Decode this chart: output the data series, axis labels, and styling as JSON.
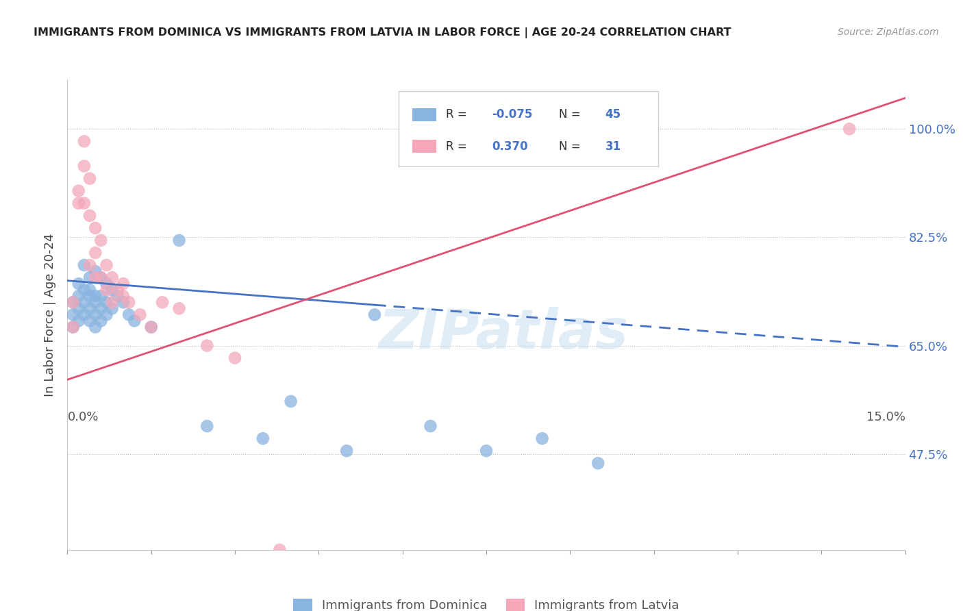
{
  "title": "IMMIGRANTS FROM DOMINICA VS IMMIGRANTS FROM LATVIA IN LABOR FORCE | AGE 20-24 CORRELATION CHART",
  "source": "Source: ZipAtlas.com",
  "ylabel": "In Labor Force | Age 20-24",
  "xlim": [
    0.0,
    0.15
  ],
  "ylim": [
    0.32,
    1.08
  ],
  "ytick_positions": [
    0.475,
    0.65,
    0.825,
    1.0
  ],
  "ytick_labels": [
    "47.5%",
    "65.0%",
    "82.5%",
    "100.0%"
  ],
  "R_dominica": -0.075,
  "N_dominica": 45,
  "R_latvia": 0.37,
  "N_latvia": 31,
  "dominica_color": "#8ab4e0",
  "latvia_color": "#f4a7b9",
  "dominica_line_color": "#4472c4",
  "latvia_line_color": "#e05070",
  "watermark_text": "ZIPatlas",
  "blue_line_y0": 0.755,
  "blue_line_y1": 0.648,
  "pink_line_y0": 0.595,
  "pink_line_y1": 1.05,
  "dominica_x": [
    0.001,
    0.001,
    0.001,
    0.002,
    0.002,
    0.002,
    0.002,
    0.003,
    0.003,
    0.003,
    0.003,
    0.004,
    0.004,
    0.004,
    0.004,
    0.004,
    0.005,
    0.005,
    0.005,
    0.005,
    0.005,
    0.006,
    0.006,
    0.006,
    0.006,
    0.007,
    0.007,
    0.007,
    0.008,
    0.008,
    0.009,
    0.01,
    0.011,
    0.012,
    0.015,
    0.02,
    0.025,
    0.035,
    0.04,
    0.05,
    0.055,
    0.065,
    0.075,
    0.085,
    0.095
  ],
  "dominica_y": [
    0.7,
    0.68,
    0.72,
    0.75,
    0.73,
    0.69,
    0.71,
    0.78,
    0.74,
    0.7,
    0.72,
    0.76,
    0.73,
    0.71,
    0.69,
    0.74,
    0.77,
    0.73,
    0.7,
    0.68,
    0.72,
    0.76,
    0.73,
    0.71,
    0.69,
    0.75,
    0.72,
    0.7,
    0.74,
    0.71,
    0.73,
    0.72,
    0.7,
    0.69,
    0.68,
    0.82,
    0.52,
    0.5,
    0.56,
    0.48,
    0.7,
    0.52,
    0.48,
    0.5,
    0.46
  ],
  "latvia_x": [
    0.001,
    0.001,
    0.002,
    0.002,
    0.003,
    0.003,
    0.003,
    0.004,
    0.004,
    0.004,
    0.005,
    0.005,
    0.005,
    0.006,
    0.006,
    0.007,
    0.007,
    0.008,
    0.008,
    0.009,
    0.01,
    0.01,
    0.011,
    0.013,
    0.015,
    0.017,
    0.02,
    0.025,
    0.03,
    0.038,
    0.14
  ],
  "latvia_y": [
    0.72,
    0.68,
    0.9,
    0.88,
    0.98,
    0.94,
    0.88,
    0.86,
    0.92,
    0.78,
    0.84,
    0.8,
    0.76,
    0.82,
    0.76,
    0.78,
    0.74,
    0.76,
    0.72,
    0.74,
    0.75,
    0.73,
    0.72,
    0.7,
    0.68,
    0.72,
    0.71,
    0.65,
    0.63,
    0.32,
    1.0
  ]
}
